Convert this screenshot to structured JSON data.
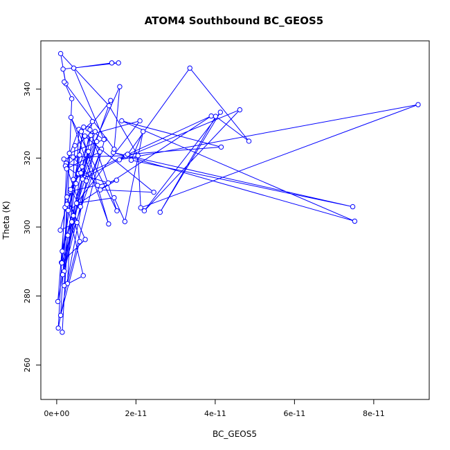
{
  "chart_data": {
    "type": "scatter",
    "title": "ATOM4 Southbound BC_GEOS5",
    "xlabel": "BC_GEOS5",
    "ylabel": "Theta (K)",
    "xlim": [
      -4e-12,
      9.4e-11
    ],
    "ylim": [
      250,
      354
    ],
    "xticks": [
      {
        "value": 0,
        "label": "0e+00"
      },
      {
        "value": 2e-11,
        "label": "2e-11"
      },
      {
        "value": 4e-11,
        "label": "4e-11"
      },
      {
        "value": 6e-11,
        "label": "6e-11"
      },
      {
        "value": 8e-11,
        "label": "8e-11"
      }
    ],
    "yticks": [
      {
        "value": 260,
        "label": "260"
      },
      {
        "value": 280,
        "label": "280"
      },
      {
        "value": 300,
        "label": "300"
      },
      {
        "value": 320,
        "label": "320"
      },
      {
        "value": 340,
        "label": "340"
      }
    ],
    "grid": false,
    "legend": "none",
    "point_style": "open-circle connected by lines",
    "color": "#0000ff",
    "series": [
      {
        "x": [
          1.2e-12,
          7.2e-12,
          2.6e-12,
          5.1e-12,
          9e-13,
          3.4e-12,
          1.3e-11,
          5.5e-12,
          2.1e-12,
          8e-12,
          1.9e-12,
          1.01e-11,
          3.8e-12,
          1.13e-11,
          1.3e-12,
          4.2e-12,
          3.9e-11,
          2.9e-12,
          4.9e-12,
          5.6e-12,
          2.4e-12,
          6.4e-12,
          3e-13,
          3.2e-12,
          1.21e-11,
          2.7e-12,
          4.6e-12,
          9.7e-12,
          1.4e-12,
          6.8e-12,
          1.5e-12,
          8.6e-12,
          3.5e-12,
          6e-12,
          1.8e-12,
          5.8e-12,
          2.2e-12,
          7.5e-12,
          4e-13,
          2.5e-12,
          1.09e-11,
          7.9e-12,
          1.36e-11,
          6.5e-12,
          1.75e-11,
          4.1e-12,
          1.03e-11,
          1.51e-11,
          1.1e-11,
          2.45e-11,
          7.1e-12,
          2.1e-11,
          5e-12,
          1.45e-11,
          1.72e-11,
          2.18e-11,
          1.88e-11,
          7.47e-11,
          1.43e-11,
          7.52e-11,
          1.64e-11,
          4.15e-11,
          1.79e-11,
          3.36e-11,
          4.85e-11,
          4.01e-11,
          2.61e-11,
          4.13e-11,
          2.21e-11,
          4.62e-11,
          1.58e-11,
          9.12e-11,
          2.12e-11,
          2.05e-11,
          1.32e-11,
          1e-12,
          2.3e-12,
          1.6e-12,
          1.56e-11,
          1.39e-11,
          4.3e-12,
          1.19e-11,
          8.4e-12,
          1.52e-11,
          3.6e-12,
          1.31e-11,
          6.2e-12,
          9e-12,
          6.1e-12,
          1.59e-11,
          1.45e-11,
          1.9e-12,
          3.8e-12,
          1.9e-12,
          6.7e-12,
          2.6e-12,
          1e-12,
          5.8e-12,
          4.2e-12,
          2.8e-12,
          1.4e-12
        ],
        "y": [
          289.7,
          296.4,
          308.7,
          301.3,
          299.1,
          310.4,
          312.8,
          315.5,
          305.7,
          321.9,
          287.2,
          324.8,
          301.5,
          322.6,
          289.6,
          313.8,
          332.2,
          304.8,
          312.6,
          328.3,
          318.5,
          317.5,
          278.4,
          321.4,
          325.5,
          283.6,
          323.6,
          327.7,
          293,
          329,
          286.2,
          326.6,
          310.9,
          305.9,
          319.7,
          320.9,
          317.7,
          313.4,
          270.7,
          316.9,
          321.8,
          328.5,
          336.7,
          313.9,
          320.7,
          320.3,
          312.1,
          313.6,
          310.8,
          310.1,
          326.4,
          330.8,
          306.9,
          308.5,
          301.6,
          327.7,
          319.4,
          305.9,
          321.6,
          301.7,
          330.8,
          323.2,
          321.1,
          346.1,
          324.9,
          332.1,
          304.3,
          333.3,
          304.7,
          334,
          319.5,
          335.5,
          305.6,
          320.7,
          335.2,
          350.3,
          341.6,
          345.8,
          347.6,
          347.6,
          346.1,
          325.4,
          328.2,
          304.7,
          331.8,
          300.9,
          327.7,
          330.6,
          315.7,
          340.7,
          322.6,
          342.1,
          337.2,
          283,
          285.9,
          306.6,
          274.4,
          295.8,
          303.3,
          297.6,
          269.5
        ]
      }
    ]
  }
}
